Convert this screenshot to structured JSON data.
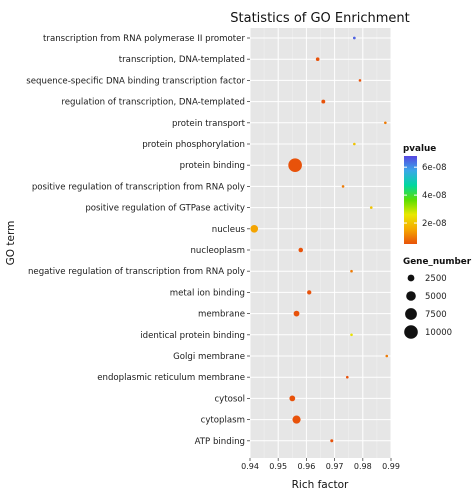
{
  "chart_data": {
    "type": "scatter",
    "title": "Statistics of GO Enrichment",
    "xlabel": "Rich factor",
    "ylabel": "GO term",
    "xlim": [
      0.94,
      0.99
    ],
    "xticks": [
      "0.94",
      "0.95",
      "0.96",
      "0.97",
      "0.98",
      "0.99"
    ],
    "grid": true,
    "legend_position": "right",
    "color_legend": {
      "title": "pvalue",
      "ticks": [
        "6e-08",
        "4e-08",
        "2e-08"
      ],
      "tick_values": [
        6e-08,
        4e-08,
        2e-08
      ],
      "range": [
        5e-09,
        6.8e-08
      ],
      "colors": [
        "#e8520a",
        "#f5a800",
        "#e8e800",
        "#5cde00",
        "#00d8a0",
        "#3aa8e8",
        "#5646e0"
      ]
    },
    "size_legend": {
      "title": "Gene_number",
      "values": [
        2500,
        5000,
        7500,
        10000
      ],
      "labels": [
        "2500",
        "5000",
        "7500",
        "10000"
      ]
    },
    "terms": [
      "transcription from RNA polymerase II promoter",
      "transcription, DNA-templated",
      "sequence-specific DNA binding transcription factor",
      "regulation of transcription, DNA-templated",
      "protein transport",
      "protein phosphorylation",
      "protein binding",
      "positive regulation of transcription from RNA poly",
      "positive regulation of GTPase activity",
      "nucleus",
      "nucleoplasm",
      "negative regulation of transcription from RNA poly",
      "metal ion binding",
      "membrane",
      "identical protein binding",
      "Golgi membrane",
      "endoplasmic reticulum membrane",
      "cytosol",
      "cytoplasm",
      "ATP binding"
    ],
    "points": [
      {
        "term": "transcription from RNA polymerase II promoter",
        "x": 0.977,
        "genes": 400,
        "pvalue": 6.5e-08
      },
      {
        "term": "transcription, DNA-templated",
        "x": 0.964,
        "genes": 700,
        "pvalue": 5e-09
      },
      {
        "term": "sequence-specific DNA binding transcription factor",
        "x": 0.979,
        "genes": 350,
        "pvalue": 5e-09
      },
      {
        "term": "regulation of transcription, DNA-templated",
        "x": 0.966,
        "genes": 800,
        "pvalue": 5e-09
      },
      {
        "term": "protein transport",
        "x": 0.988,
        "genes": 250,
        "pvalue": 1e-08
      },
      {
        "term": "protein phosphorylation",
        "x": 0.977,
        "genes": 200,
        "pvalue": 2e-08
      },
      {
        "term": "protein binding",
        "x": 0.956,
        "genes": 10000,
        "pvalue": 5e-09
      },
      {
        "term": "positive regulation of transcription from RNA poly",
        "x": 0.973,
        "genes": 250,
        "pvalue": 1e-08
      },
      {
        "term": "positive regulation of GTPase activity",
        "x": 0.983,
        "genes": 150,
        "pvalue": 2e-08
      },
      {
        "term": "nucleus",
        "x": 0.9415,
        "genes": 3200,
        "pvalue": 1.5e-08
      },
      {
        "term": "nucleoplasm",
        "x": 0.958,
        "genes": 1100,
        "pvalue": 5e-09
      },
      {
        "term": "negative regulation of transcription from RNA poly",
        "x": 0.976,
        "genes": 250,
        "pvalue": 1e-08
      },
      {
        "term": "metal ion binding",
        "x": 0.961,
        "genes": 1000,
        "pvalue": 5e-09
      },
      {
        "term": "membrane",
        "x": 0.9565,
        "genes": 1800,
        "pvalue": 5e-09
      },
      {
        "term": "identical protein binding",
        "x": 0.976,
        "genes": 200,
        "pvalue": 2.5e-08
      },
      {
        "term": "Golgi membrane",
        "x": 0.9885,
        "genes": 150,
        "pvalue": 1e-08
      },
      {
        "term": "endoplasmic reticulum membrane",
        "x": 0.9745,
        "genes": 300,
        "pvalue": 5e-09
      },
      {
        "term": "cytosol",
        "x": 0.955,
        "genes": 1800,
        "pvalue": 5e-09
      },
      {
        "term": "cytoplasm",
        "x": 0.9565,
        "genes": 3600,
        "pvalue": 5e-09
      },
      {
        "term": "ATP binding",
        "x": 0.969,
        "genes": 500,
        "pvalue": 5e-09
      }
    ]
  }
}
